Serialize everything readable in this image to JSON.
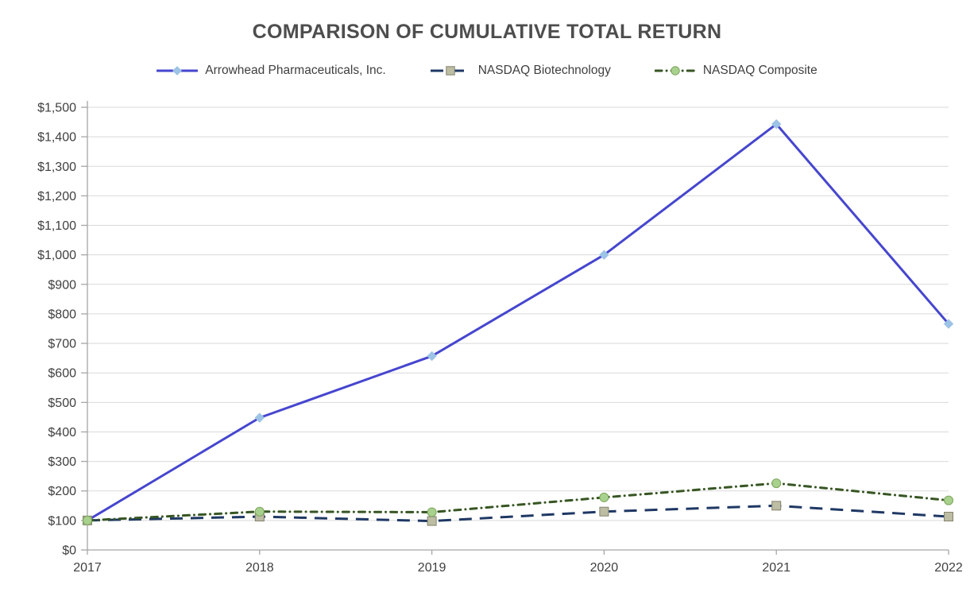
{
  "title": "COMPARISON OF CUMULATIVE TOTAL RETURN",
  "chart_data": {
    "type": "line",
    "title": "COMPARISON OF CUMULATIVE TOTAL RETURN",
    "x": [
      "2017",
      "2018",
      "2019",
      "2020",
      "2021",
      "2022"
    ],
    "series": [
      {
        "name": "Arrowhead Pharmaceuticals, Inc.",
        "values": [
          100,
          448,
          657,
          1000,
          1443,
          766
        ],
        "color": "#4646cf",
        "dash": "solid",
        "marker": "diamond",
        "marker_color": "#9dc3e6",
        "marker_stroke": "#9dc3e6"
      },
      {
        "name": "NASDAQ Biotechnology",
        "values": [
          100,
          113,
          98,
          130,
          150,
          113
        ],
        "color": "#1f3864",
        "dash": "long-dash",
        "marker": "square",
        "marker_color": "#bdbda4",
        "marker_stroke": "#83836e"
      },
      {
        "name": "NASDAQ Composite",
        "values": [
          100,
          130,
          128,
          178,
          226,
          168
        ],
        "color": "#375623",
        "dash": "dash-dot",
        "marker": "circle",
        "marker_color": "#a9d18e",
        "marker_stroke": "#7ba55b"
      }
    ],
    "ylim": [
      0,
      1500
    ],
    "ytick_step": 100,
    "ytick_labels": [
      "$0",
      "$100",
      "$200",
      "$300",
      "$400",
      "$500",
      "$600",
      "$700",
      "$800",
      "$900",
      "$1,000",
      "$1,100",
      "$1,200",
      "$1,300",
      "$1,400",
      "$1,500"
    ],
    "grid": true,
    "legend_position": "top"
  },
  "style": {
    "grid_color": "#d9d9d9",
    "axis_color": "#a6a6a6",
    "text_color": "#404040",
    "title_color": "#4d4d4d",
    "background": "#ffffff"
  }
}
